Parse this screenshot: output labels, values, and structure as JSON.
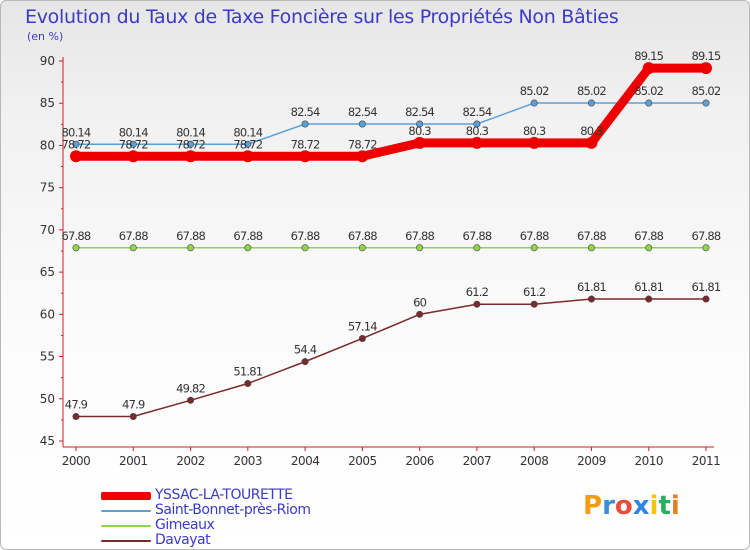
{
  "title": "Evolution du Taux de Taxe Foncière sur les Propriétés Non Bâties",
  "unit": "(en %)",
  "logo": {
    "text": "Proxiti",
    "letters": [
      "P",
      "r",
      "o",
      "x",
      "i",
      "t",
      "i"
    ],
    "colors": [
      "#f39c12",
      "#3b8ed6",
      "#e74c3c",
      "#2e86de",
      "#f1c40f",
      "#27ae60",
      "#e67e22"
    ]
  },
  "chart_data": {
    "type": "line",
    "x": [
      2000,
      2001,
      2002,
      2003,
      2004,
      2005,
      2006,
      2007,
      2008,
      2009,
      2010,
      2011
    ],
    "ylim": [
      45,
      90
    ],
    "yticks": [
      45,
      50,
      55,
      60,
      65,
      70,
      75,
      80,
      85,
      90
    ],
    "grid": false,
    "legend_position": "bottom-left",
    "series": [
      {
        "name": "YSSAC-LA-TOURETTE",
        "color": "#ee0000",
        "width": 9,
        "marker": false,
        "values": [
          78.72,
          78.72,
          78.72,
          78.72,
          78.72,
          78.72,
          80.3,
          80.3,
          80.3,
          80.3,
          89.15,
          89.15
        ],
        "labels": [
          "78.72",
          "78.72",
          "78.72",
          "78.72",
          "78.72",
          "78.72",
          "80.3",
          "80.3",
          "80.3",
          "80.3",
          "89.15",
          "89.15"
        ]
      },
      {
        "name": "Saint-Bonnet-près-Riom",
        "color": "#5aa0d8",
        "width": 1.5,
        "marker": true,
        "values": [
          80.14,
          80.14,
          80.14,
          80.14,
          82.54,
          82.54,
          82.54,
          82.54,
          85.02,
          85.02,
          85.02,
          85.02
        ],
        "labels": [
          "80.14",
          "80.14",
          "80.14",
          "80.14",
          "82.54",
          "82.54",
          "82.54",
          "82.54",
          "85.02",
          "85.02",
          "85.02",
          "85.02"
        ]
      },
      {
        "name": "Gimeaux",
        "color": "#8fd44c",
        "width": 1.5,
        "marker": true,
        "values": [
          67.88,
          67.88,
          67.88,
          67.88,
          67.88,
          67.88,
          67.88,
          67.88,
          67.88,
          67.88,
          67.88,
          67.88
        ],
        "labels": [
          "67.88",
          "67.88",
          "67.88",
          "67.88",
          "67.88",
          "67.88",
          "67.88",
          "67.88",
          "67.88",
          "67.88",
          "67.88",
          "67.88"
        ]
      },
      {
        "name": "Davayat",
        "color": "#7a2a2a",
        "width": 1.5,
        "marker": true,
        "values": [
          47.9,
          47.9,
          49.82,
          51.81,
          54.4,
          57.14,
          60,
          61.2,
          61.2,
          61.81,
          61.81,
          61.81
        ],
        "labels": [
          "47.9",
          "47.9",
          "49.82",
          "51.81",
          "54.4",
          "57.14",
          "60",
          "61.2",
          "61.2",
          "61.81",
          "61.81",
          "61.81"
        ]
      }
    ]
  }
}
